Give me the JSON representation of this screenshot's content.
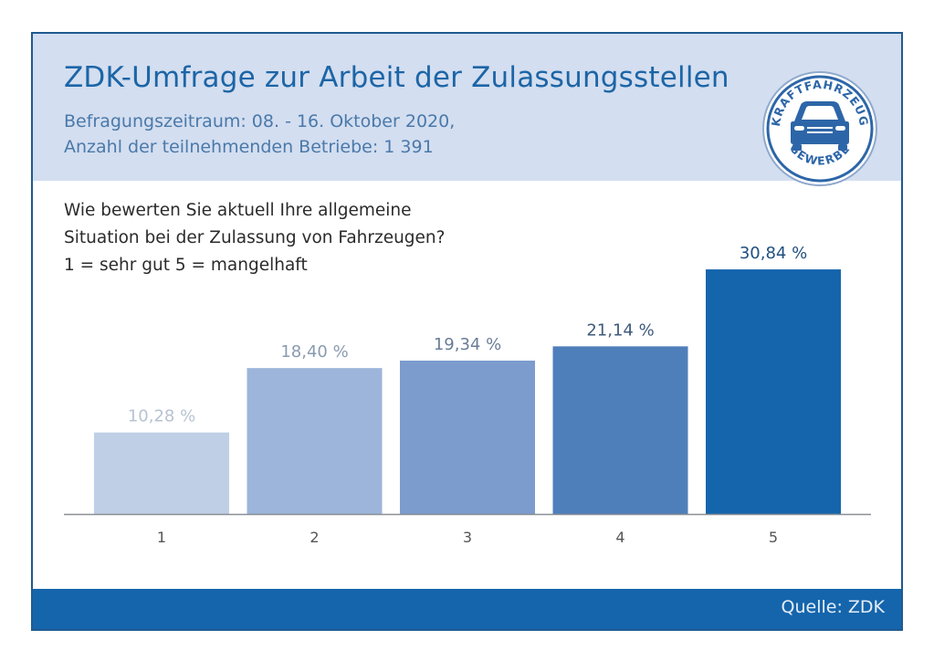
{
  "header": {
    "title": "ZDK-Umfrage zur Arbeit der Zulassungsstellen",
    "subtitle_line1": "Befragungszeitraum: 08. - 16. Oktober 2020,",
    "subtitle_line2": "Anzahl der teilnehmenden Betriebe: 1 391"
  },
  "logo": {
    "icon": "car-icon",
    "text_top": "KRAFTFAHRZEUG",
    "text_bottom": "GEWERBE"
  },
  "question": {
    "line1": "Wie bewerten Sie aktuell Ihre allgemeine",
    "line2": "Situation bei der Zulassung von Fahrzeugen?",
    "line3": "1 = sehr gut  5 = mangelhaft"
  },
  "footer": {
    "source": "Quelle: ZDK"
  },
  "colors": {
    "header_bg": "#d3def0",
    "title": "#1c65a6",
    "footer_bg": "#1565ac",
    "frame_border": "#1f5a8f"
  },
  "chart_data": {
    "type": "bar",
    "title": "Wie bewerten Sie aktuell Ihre allgemeine Situation bei der Zulassung von Fahrzeugen?",
    "xlabel": "",
    "ylabel": "",
    "categories": [
      "1",
      "2",
      "3",
      "4",
      "5"
    ],
    "values": [
      10.28,
      18.4,
      19.34,
      21.14,
      30.84
    ],
    "data_labels": [
      "10,28 %",
      "18,40 %",
      "19,34 %",
      "21,14 %",
      "30,84 %"
    ],
    "bar_colors": [
      "#bfcfe6",
      "#9db5da",
      "#7b9ccd",
      "#4f7fbb",
      "#1565ac"
    ],
    "label_colors": [
      "#b7c3d2",
      "#8a9bb0",
      "#6a7d96",
      "#3f5a7c",
      "#1f4f7f"
    ],
    "ylim": [
      0,
      32
    ],
    "grid": false,
    "legend": "none"
  }
}
